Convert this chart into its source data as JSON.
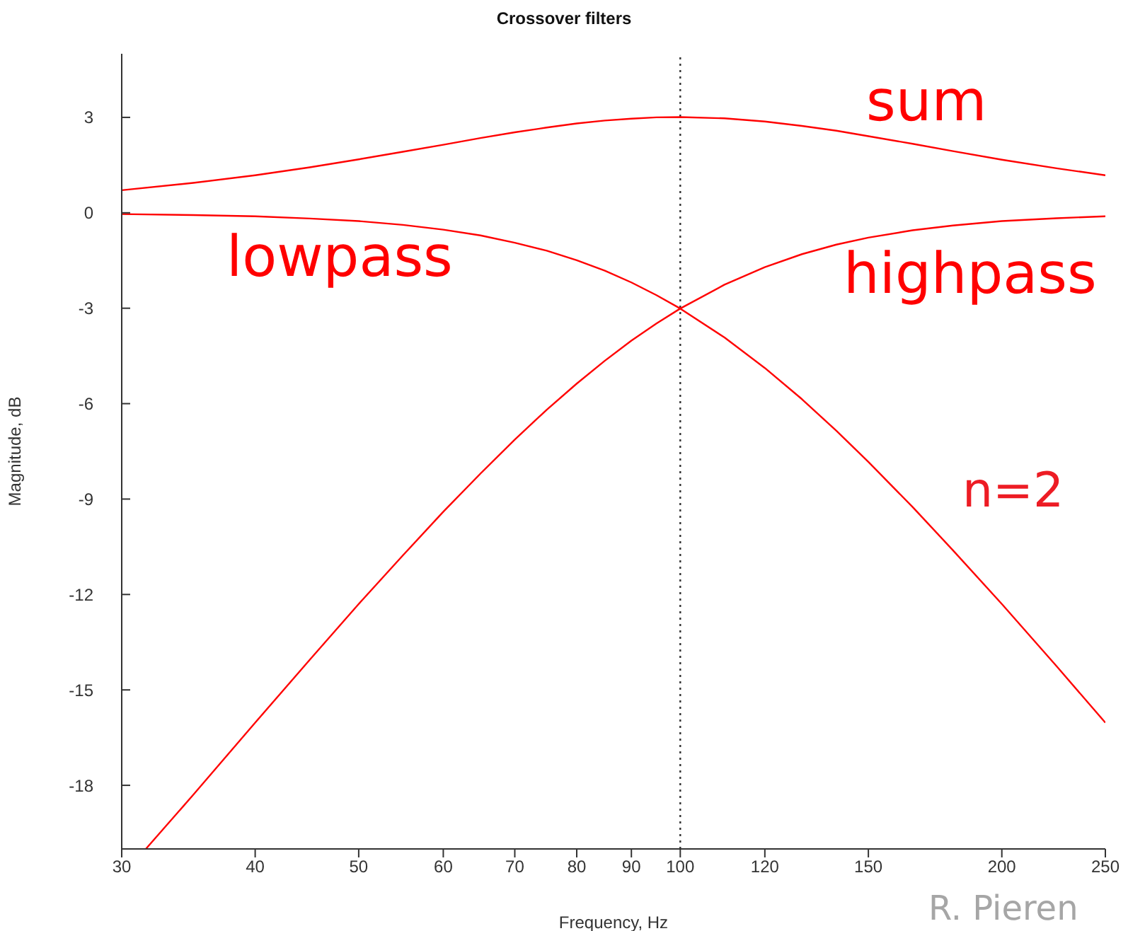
{
  "chart_data": {
    "type": "line",
    "title": "Crossover filters",
    "xlabel": "Frequency, Hz",
    "ylabel": "Magnitude, dB",
    "log": "x",
    "xlim": [
      30,
      250
    ],
    "xticks": [
      30,
      40,
      50,
      60,
      70,
      80,
      90,
      100,
      120,
      150,
      200,
      250
    ],
    "ylim": [
      -20,
      5
    ],
    "yticks": [
      3,
      0,
      -3,
      -6,
      -9,
      -12,
      -15,
      -18
    ],
    "marker": "none",
    "line_style": "solid",
    "ref_lines": [
      {
        "axis": "x",
        "value": 100,
        "label": null,
        "color": "#333333",
        "line_style": "dotted"
      }
    ],
    "annotations": [
      "n=2",
      "R. Pieren"
    ],
    "series": [
      {
        "name": "sum",
        "color": "#ff0000",
        "x": [
          30,
          35,
          40,
          45,
          50,
          55,
          60,
          65,
          70,
          75,
          80,
          85,
          90,
          95,
          100,
          110,
          120,
          130,
          140,
          150,
          165,
          180,
          200,
          225,
          250
        ],
        "values": [
          0.71,
          0.94,
          1.18,
          1.43,
          1.68,
          1.92,
          2.14,
          2.35,
          2.53,
          2.68,
          2.81,
          2.9,
          2.96,
          3.0,
          3.01,
          2.97,
          2.87,
          2.73,
          2.58,
          2.41,
          2.17,
          1.94,
          1.67,
          1.4,
          1.18
        ]
      },
      {
        "name": "lowpass",
        "color": "#ff0000",
        "x": [
          30,
          35,
          40,
          45,
          50,
          55,
          60,
          65,
          70,
          75,
          80,
          85,
          90,
          95,
          100,
          110,
          120,
          130,
          140,
          150,
          165,
          180,
          200,
          225,
          250
        ],
        "values": [
          -0.04,
          -0.07,
          -0.11,
          -0.18,
          -0.26,
          -0.38,
          -0.53,
          -0.71,
          -0.94,
          -1.19,
          -1.49,
          -1.82,
          -2.19,
          -2.59,
          -3.01,
          -3.92,
          -4.88,
          -5.86,
          -6.85,
          -7.83,
          -9.25,
          -10.61,
          -12.3,
          -14.25,
          -16.03
        ]
      },
      {
        "name": "highpass",
        "color": "#ff0000",
        "x": [
          31.6,
          35,
          40,
          45,
          50,
          55,
          60,
          65,
          70,
          75,
          80,
          85,
          90,
          95,
          100,
          110,
          120,
          130,
          140,
          150,
          165,
          180,
          200,
          225,
          250
        ],
        "values": [
          -20.0,
          -18.3,
          -16.03,
          -14.05,
          -12.3,
          -10.77,
          -9.4,
          -8.2,
          -7.13,
          -6.19,
          -5.37,
          -4.65,
          -4.02,
          -3.48,
          -3.01,
          -2.26,
          -1.71,
          -1.3,
          -1.0,
          -0.78,
          -0.55,
          -0.4,
          -0.26,
          -0.17,
          -0.11
        ]
      }
    ]
  }
}
